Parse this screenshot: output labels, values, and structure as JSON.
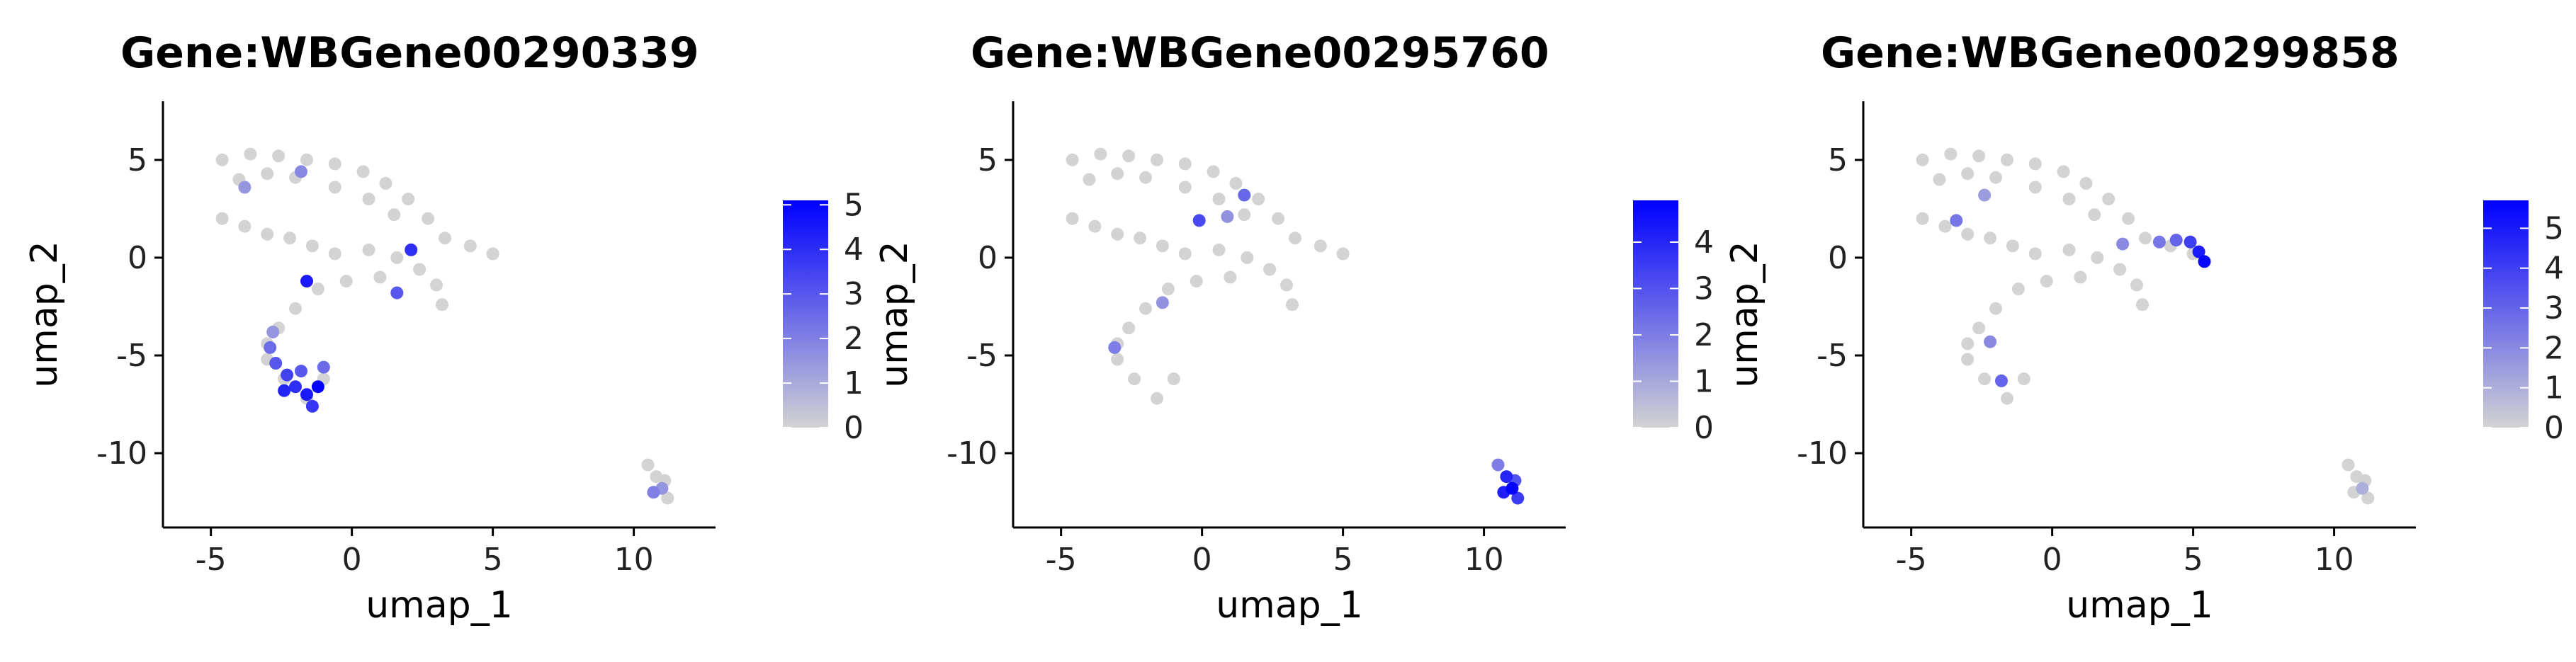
{
  "chart_data": [
    {
      "type": "scatter",
      "title": "Gene:WBGene00290339",
      "xlabel": "umap_1",
      "ylabel": "umap_2",
      "xlim": [
        -6.7,
        12.9
      ],
      "ylim": [
        -13.8,
        8.0
      ],
      "xticks": [
        {
          "value": -5,
          "label": "-5"
        },
        {
          "value": 0,
          "label": "0"
        },
        {
          "value": 5,
          "label": "5"
        },
        {
          "value": 10,
          "label": "10"
        }
      ],
      "yticks": [
        {
          "value": 5,
          "label": "5"
        },
        {
          "value": 0,
          "label": "0"
        },
        {
          "value": -5,
          "label": "-5"
        },
        {
          "value": -10,
          "label": "-10"
        }
      ],
      "colorbar": {
        "min": 0,
        "max": 5.1,
        "low_color": "#d3d3d3",
        "high_color": "#0000ff",
        "ticks": [
          {
            "value": 0,
            "label": "0"
          },
          {
            "value": 1,
            "label": "1"
          },
          {
            "value": 2,
            "label": "2"
          },
          {
            "value": 3,
            "label": "3"
          },
          {
            "value": 4,
            "label": "4"
          },
          {
            "value": 5,
            "label": "5"
          }
        ]
      },
      "points": [
        [
          -4.6,
          5.0,
          0
        ],
        [
          -3.6,
          5.3,
          0
        ],
        [
          -2.6,
          5.2,
          0
        ],
        [
          -1.6,
          5.0,
          0
        ],
        [
          -0.6,
          4.8,
          0
        ],
        [
          0.4,
          4.4,
          0
        ],
        [
          1.2,
          3.8,
          0
        ],
        [
          2.0,
          3.0,
          0
        ],
        [
          2.7,
          2.0,
          0
        ],
        [
          3.3,
          1.0,
          0
        ],
        [
          4.2,
          0.6,
          0
        ],
        [
          5.0,
          0.2,
          0
        ],
        [
          -4.0,
          4.0,
          0
        ],
        [
          -3.0,
          4.3,
          0
        ],
        [
          -2.0,
          4.1,
          0
        ],
        [
          -0.6,
          3.6,
          0
        ],
        [
          0.6,
          3.0,
          0
        ],
        [
          1.5,
          2.2,
          0
        ],
        [
          -4.6,
          2.0,
          0
        ],
        [
          -3.8,
          1.6,
          0
        ],
        [
          -3.0,
          1.2,
          0
        ],
        [
          -2.2,
          1.0,
          0
        ],
        [
          -1.4,
          0.6,
          0
        ],
        [
          -0.6,
          0.2,
          0
        ],
        [
          0.6,
          0.4,
          0
        ],
        [
          1.6,
          0.0,
          0
        ],
        [
          2.4,
          -0.6,
          0
        ],
        [
          3.0,
          -1.4,
          0
        ],
        [
          3.2,
          -2.4,
          0
        ],
        [
          1.0,
          -1.0,
          0
        ],
        [
          -0.2,
          -1.2,
          0
        ],
        [
          -1.2,
          -1.6,
          0
        ],
        [
          -2.0,
          -2.6,
          0
        ],
        [
          -2.6,
          -3.6,
          0
        ],
        [
          -3.0,
          -4.4,
          0
        ],
        [
          -3.0,
          -5.2,
          0
        ],
        [
          -2.4,
          -6.2,
          0
        ],
        [
          -1.6,
          -7.2,
          0
        ],
        [
          -1.0,
          -6.2,
          0
        ],
        [
          -2.9,
          -4.6,
          2.5
        ],
        [
          -2.7,
          -5.4,
          3.0
        ],
        [
          -2.3,
          -6.0,
          3.5
        ],
        [
          -2.0,
          -6.6,
          4.0
        ],
        [
          -1.6,
          -7.0,
          4.5
        ],
        [
          -1.2,
          -6.6,
          5.0
        ],
        [
          -1.8,
          -5.8,
          3.0
        ],
        [
          -2.4,
          -6.8,
          4.2
        ],
        [
          -1.4,
          -7.6,
          3.8
        ],
        [
          -1.0,
          -5.6,
          2.5
        ],
        [
          -2.8,
          -3.8,
          1.5
        ],
        [
          -1.8,
          4.4,
          1.8
        ],
        [
          2.1,
          0.4,
          4.0
        ],
        [
          -1.6,
          -1.2,
          4.5
        ],
        [
          1.6,
          -1.8,
          3.0
        ],
        [
          -3.8,
          3.6,
          1.5
        ],
        [
          10.5,
          -10.6,
          0
        ],
        [
          10.8,
          -11.2,
          0
        ],
        [
          11.0,
          -11.8,
          1.5
        ],
        [
          11.2,
          -12.3,
          0
        ],
        [
          10.7,
          -12.0,
          2.0
        ],
        [
          11.1,
          -11.4,
          0
        ]
      ]
    },
    {
      "type": "scatter",
      "title": "Gene:WBGene00295760",
      "xlabel": "umap_1",
      "ylabel": "umap_2",
      "xlim": [
        -6.7,
        12.9
      ],
      "ylim": [
        -13.8,
        8.0
      ],
      "xticks": [
        {
          "value": -5,
          "label": "-5"
        },
        {
          "value": 0,
          "label": "0"
        },
        {
          "value": 5,
          "label": "5"
        },
        {
          "value": 10,
          "label": "10"
        }
      ],
      "yticks": [
        {
          "value": 5,
          "label": "5"
        },
        {
          "value": 0,
          "label": "0"
        },
        {
          "value": -5,
          "label": "-5"
        },
        {
          "value": -10,
          "label": "-10"
        }
      ],
      "colorbar": {
        "min": 0,
        "max": 4.9,
        "low_color": "#d3d3d3",
        "high_color": "#0000ff",
        "ticks": [
          {
            "value": 0,
            "label": "0"
          },
          {
            "value": 1,
            "label": "1"
          },
          {
            "value": 2,
            "label": "2"
          },
          {
            "value": 3,
            "label": "3"
          },
          {
            "value": 4,
            "label": "4"
          }
        ]
      },
      "points": [
        [
          -4.6,
          5.0,
          0
        ],
        [
          -3.6,
          5.3,
          0
        ],
        [
          -2.6,
          5.2,
          0
        ],
        [
          -1.6,
          5.0,
          0
        ],
        [
          -0.6,
          4.8,
          0
        ],
        [
          0.4,
          4.4,
          0
        ],
        [
          1.2,
          3.8,
          0
        ],
        [
          2.0,
          3.0,
          0
        ],
        [
          2.7,
          2.0,
          0
        ],
        [
          3.3,
          1.0,
          0
        ],
        [
          4.2,
          0.6,
          0
        ],
        [
          5.0,
          0.2,
          0
        ],
        [
          -4.0,
          4.0,
          0
        ],
        [
          -3.0,
          4.3,
          0
        ],
        [
          -2.0,
          4.1,
          0
        ],
        [
          -0.6,
          3.6,
          0
        ],
        [
          0.6,
          3.0,
          0
        ],
        [
          1.5,
          2.2,
          0
        ],
        [
          -4.6,
          2.0,
          0
        ],
        [
          -3.8,
          1.6,
          0
        ],
        [
          -3.0,
          1.2,
          0
        ],
        [
          -2.2,
          1.0,
          0
        ],
        [
          -1.4,
          0.6,
          0
        ],
        [
          -0.6,
          0.2,
          0
        ],
        [
          0.6,
          0.4,
          0
        ],
        [
          1.6,
          0.0,
          0
        ],
        [
          2.4,
          -0.6,
          0
        ],
        [
          3.0,
          -1.4,
          0
        ],
        [
          3.2,
          -2.4,
          0
        ],
        [
          1.0,
          -1.0,
          0
        ],
        [
          -0.2,
          -1.2,
          0
        ],
        [
          -1.2,
          -1.6,
          0
        ],
        [
          -2.0,
          -2.6,
          0
        ],
        [
          -2.6,
          -3.6,
          0
        ],
        [
          -3.0,
          -4.4,
          0
        ],
        [
          -3.0,
          -5.2,
          0
        ],
        [
          -2.4,
          -6.2,
          0
        ],
        [
          -1.6,
          -7.2,
          0
        ],
        [
          -1.0,
          -6.2,
          0
        ],
        [
          -0.1,
          1.9,
          3.2
        ],
        [
          1.5,
          3.2,
          2.5
        ],
        [
          -3.1,
          -4.6,
          2.0
        ],
        [
          -1.4,
          -2.3,
          1.5
        ],
        [
          0.9,
          2.1,
          1.5
        ],
        [
          10.5,
          -10.6,
          2.0
        ],
        [
          10.8,
          -11.2,
          4.0
        ],
        [
          11.0,
          -11.8,
          4.8
        ],
        [
          11.2,
          -12.3,
          3.5
        ],
        [
          10.7,
          -12.0,
          4.2
        ],
        [
          11.1,
          -11.4,
          3.0
        ]
      ]
    },
    {
      "type": "scatter",
      "title": "Gene:WBGene00299858",
      "xlabel": "umap_1",
      "ylabel": "umap_2",
      "xlim": [
        -6.7,
        12.9
      ],
      "ylim": [
        -13.8,
        8.0
      ],
      "xticks": [
        {
          "value": -5,
          "label": "-5"
        },
        {
          "value": 0,
          "label": "0"
        },
        {
          "value": 5,
          "label": "5"
        },
        {
          "value": 10,
          "label": "10"
        }
      ],
      "yticks": [
        {
          "value": 5,
          "label": "5"
        },
        {
          "value": 0,
          "label": "0"
        },
        {
          "value": -5,
          "label": "-5"
        },
        {
          "value": -10,
          "label": "-10"
        }
      ],
      "colorbar": {
        "min": 0,
        "max": 5.7,
        "low_color": "#d3d3d3",
        "high_color": "#0000ff",
        "ticks": [
          {
            "value": 0,
            "label": "0"
          },
          {
            "value": 1,
            "label": "1"
          },
          {
            "value": 2,
            "label": "2"
          },
          {
            "value": 3,
            "label": "3"
          },
          {
            "value": 4,
            "label": "4"
          },
          {
            "value": 5,
            "label": "5"
          }
        ]
      },
      "points": [
        [
          -4.6,
          5.0,
          0
        ],
        [
          -3.6,
          5.3,
          0
        ],
        [
          -2.6,
          5.2,
          0
        ],
        [
          -1.6,
          5.0,
          0
        ],
        [
          -0.6,
          4.8,
          0
        ],
        [
          0.4,
          4.4,
          0
        ],
        [
          1.2,
          3.8,
          0
        ],
        [
          2.0,
          3.0,
          0
        ],
        [
          2.7,
          2.0,
          0
        ],
        [
          3.3,
          1.0,
          0
        ],
        [
          4.2,
          0.6,
          0
        ],
        [
          5.0,
          0.2,
          0
        ],
        [
          -4.0,
          4.0,
          0
        ],
        [
          -3.0,
          4.3,
          0
        ],
        [
          -2.0,
          4.1,
          0
        ],
        [
          -0.6,
          3.6,
          0
        ],
        [
          0.6,
          3.0,
          0
        ],
        [
          1.5,
          2.2,
          0
        ],
        [
          -4.6,
          2.0,
          0
        ],
        [
          -3.8,
          1.6,
          0
        ],
        [
          -3.0,
          1.2,
          0
        ],
        [
          -2.2,
          1.0,
          0
        ],
        [
          -1.4,
          0.6,
          0
        ],
        [
          -0.6,
          0.2,
          0
        ],
        [
          0.6,
          0.4,
          0
        ],
        [
          1.6,
          0.0,
          0
        ],
        [
          2.4,
          -0.6,
          0
        ],
        [
          3.0,
          -1.4,
          0
        ],
        [
          3.2,
          -2.4,
          0
        ],
        [
          1.0,
          -1.0,
          0
        ],
        [
          -0.2,
          -1.2,
          0
        ],
        [
          -1.2,
          -1.6,
          0
        ],
        [
          -2.0,
          -2.6,
          0
        ],
        [
          -2.6,
          -3.6,
          0
        ],
        [
          -3.0,
          -4.4,
          0
        ],
        [
          -3.0,
          -5.2,
          0
        ],
        [
          -2.4,
          -6.2,
          0
        ],
        [
          -1.6,
          -7.2,
          0
        ],
        [
          -1.0,
          -6.2,
          0
        ],
        [
          4.4,
          0.9,
          3.0
        ],
        [
          4.9,
          0.8,
          4.0
        ],
        [
          5.2,
          0.3,
          5.0
        ],
        [
          5.4,
          -0.2,
          5.5
        ],
        [
          3.8,
          0.8,
          2.5
        ],
        [
          2.5,
          0.7,
          2.0
        ],
        [
          -3.4,
          1.9,
          2.5
        ],
        [
          -2.4,
          3.2,
          1.5
        ],
        [
          -1.8,
          -6.3,
          3.0
        ],
        [
          -2.2,
          -4.3,
          2.0
        ],
        [
          10.5,
          -10.6,
          0
        ],
        [
          10.8,
          -11.2,
          0
        ],
        [
          11.0,
          -11.8,
          1.0
        ],
        [
          11.2,
          -12.3,
          0
        ],
        [
          10.7,
          -12.0,
          0
        ],
        [
          11.1,
          -11.4,
          0
        ]
      ]
    }
  ]
}
